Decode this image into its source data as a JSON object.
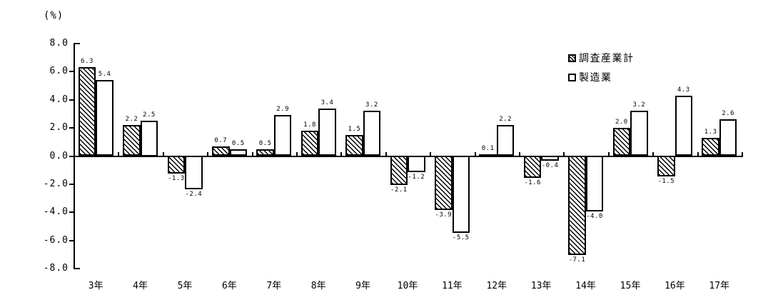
{
  "chart_data": {
    "type": "bar",
    "unit_label": "(%)",
    "categories": [
      "3年",
      "4年",
      "5年",
      "6年",
      "7年",
      "8年",
      "9年",
      "10年",
      "11年",
      "12年",
      "13年",
      "14年",
      "15年",
      "16年",
      "17年"
    ],
    "series": [
      {
        "name": "調査産業計",
        "style": "hatched",
        "values": [
          6.3,
          2.2,
          -1.3,
          0.7,
          0.5,
          1.8,
          1.5,
          -2.1,
          -3.9,
          0.1,
          -1.6,
          -7.1,
          2.0,
          -1.5,
          1.3
        ]
      },
      {
        "name": "製造業",
        "style": "plain",
        "values": [
          5.4,
          2.5,
          -2.4,
          0.5,
          2.9,
          3.4,
          3.2,
          -1.2,
          -5.5,
          2.2,
          -0.4,
          -4.0,
          3.2,
          4.3,
          2.6
        ]
      }
    ],
    "ylim": [
      -8.0,
      8.0
    ],
    "ytick_step": 2.0,
    "ytick_labels": [
      "8.0",
      "6.0",
      "4.0",
      "2.0",
      "0.0",
      "-2.0",
      "-4.0",
      "-6.0",
      "-8.0"
    ],
    "value_labels_shown": true,
    "grid": false,
    "legend_position": "top-right",
    "colors": {
      "foreground": "#000000",
      "background": "#ffffff"
    }
  }
}
